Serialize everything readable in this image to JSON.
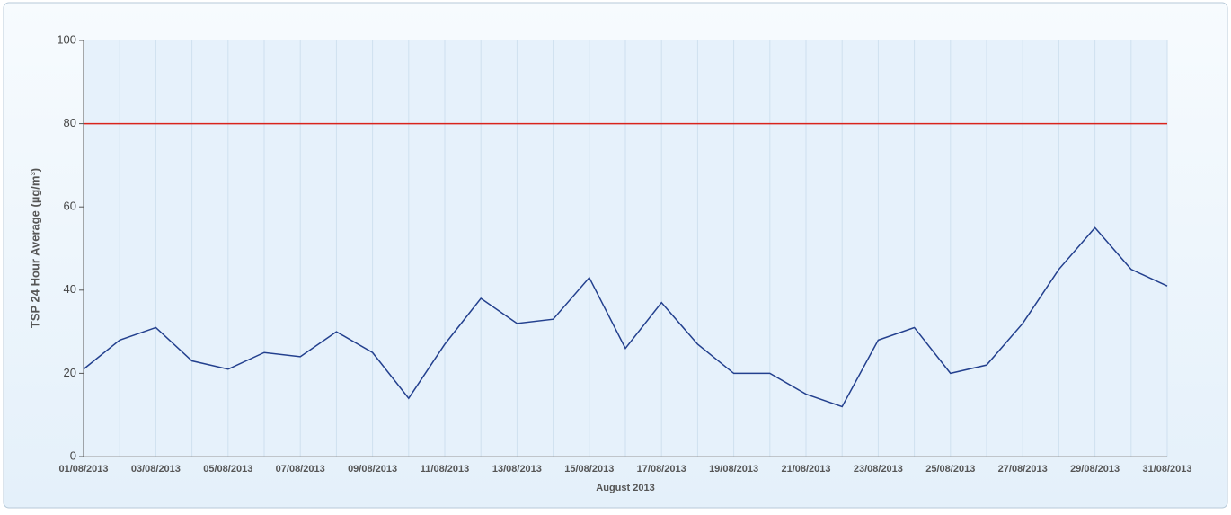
{
  "chart_data": {
    "type": "line",
    "y_label": "TSP 24 Hour Average (µg/m³)",
    "x_label": "August 2013",
    "x": [
      "01/08/2013",
      "02/08/2013",
      "03/08/2013",
      "04/08/2013",
      "05/08/2013",
      "06/08/2013",
      "07/08/2013",
      "08/08/2013",
      "09/08/2013",
      "10/08/2013",
      "11/08/2013",
      "12/08/2013",
      "13/08/2013",
      "14/08/2013",
      "15/08/2013",
      "16/08/2013",
      "17/08/2013",
      "18/08/2013",
      "19/08/2013",
      "20/08/2013",
      "21/08/2013",
      "22/08/2013",
      "23/08/2013",
      "24/08/2013",
      "25/08/2013",
      "26/08/2013",
      "27/08/2013",
      "28/08/2013",
      "29/08/2013",
      "30/08/2013",
      "31/08/2013"
    ],
    "xticks": [
      "01/08/2013",
      "03/08/2013",
      "05/08/2013",
      "07/08/2013",
      "09/08/2013",
      "11/08/2013",
      "13/08/2013",
      "15/08/2013",
      "17/08/2013",
      "19/08/2013",
      "21/08/2013",
      "23/08/2013",
      "25/08/2013",
      "27/08/2013",
      "29/08/2013",
      "31/08/2013"
    ],
    "series": [
      {
        "color": "#23408e",
        "values": [
          21,
          28,
          31,
          23,
          21,
          25,
          24,
          30,
          25,
          14,
          27,
          38,
          32,
          33,
          43,
          26,
          37,
          27,
          20,
          20,
          15,
          12,
          28,
          31,
          20,
          22,
          32,
          45,
          55,
          45,
          41
        ]
      }
    ],
    "threshold": {
      "value": 80,
      "color": "#d9241c"
    },
    "ylim": [
      0,
      100
    ],
    "yticks": [
      0,
      20,
      40,
      60,
      80,
      100
    ],
    "grid": true
  }
}
